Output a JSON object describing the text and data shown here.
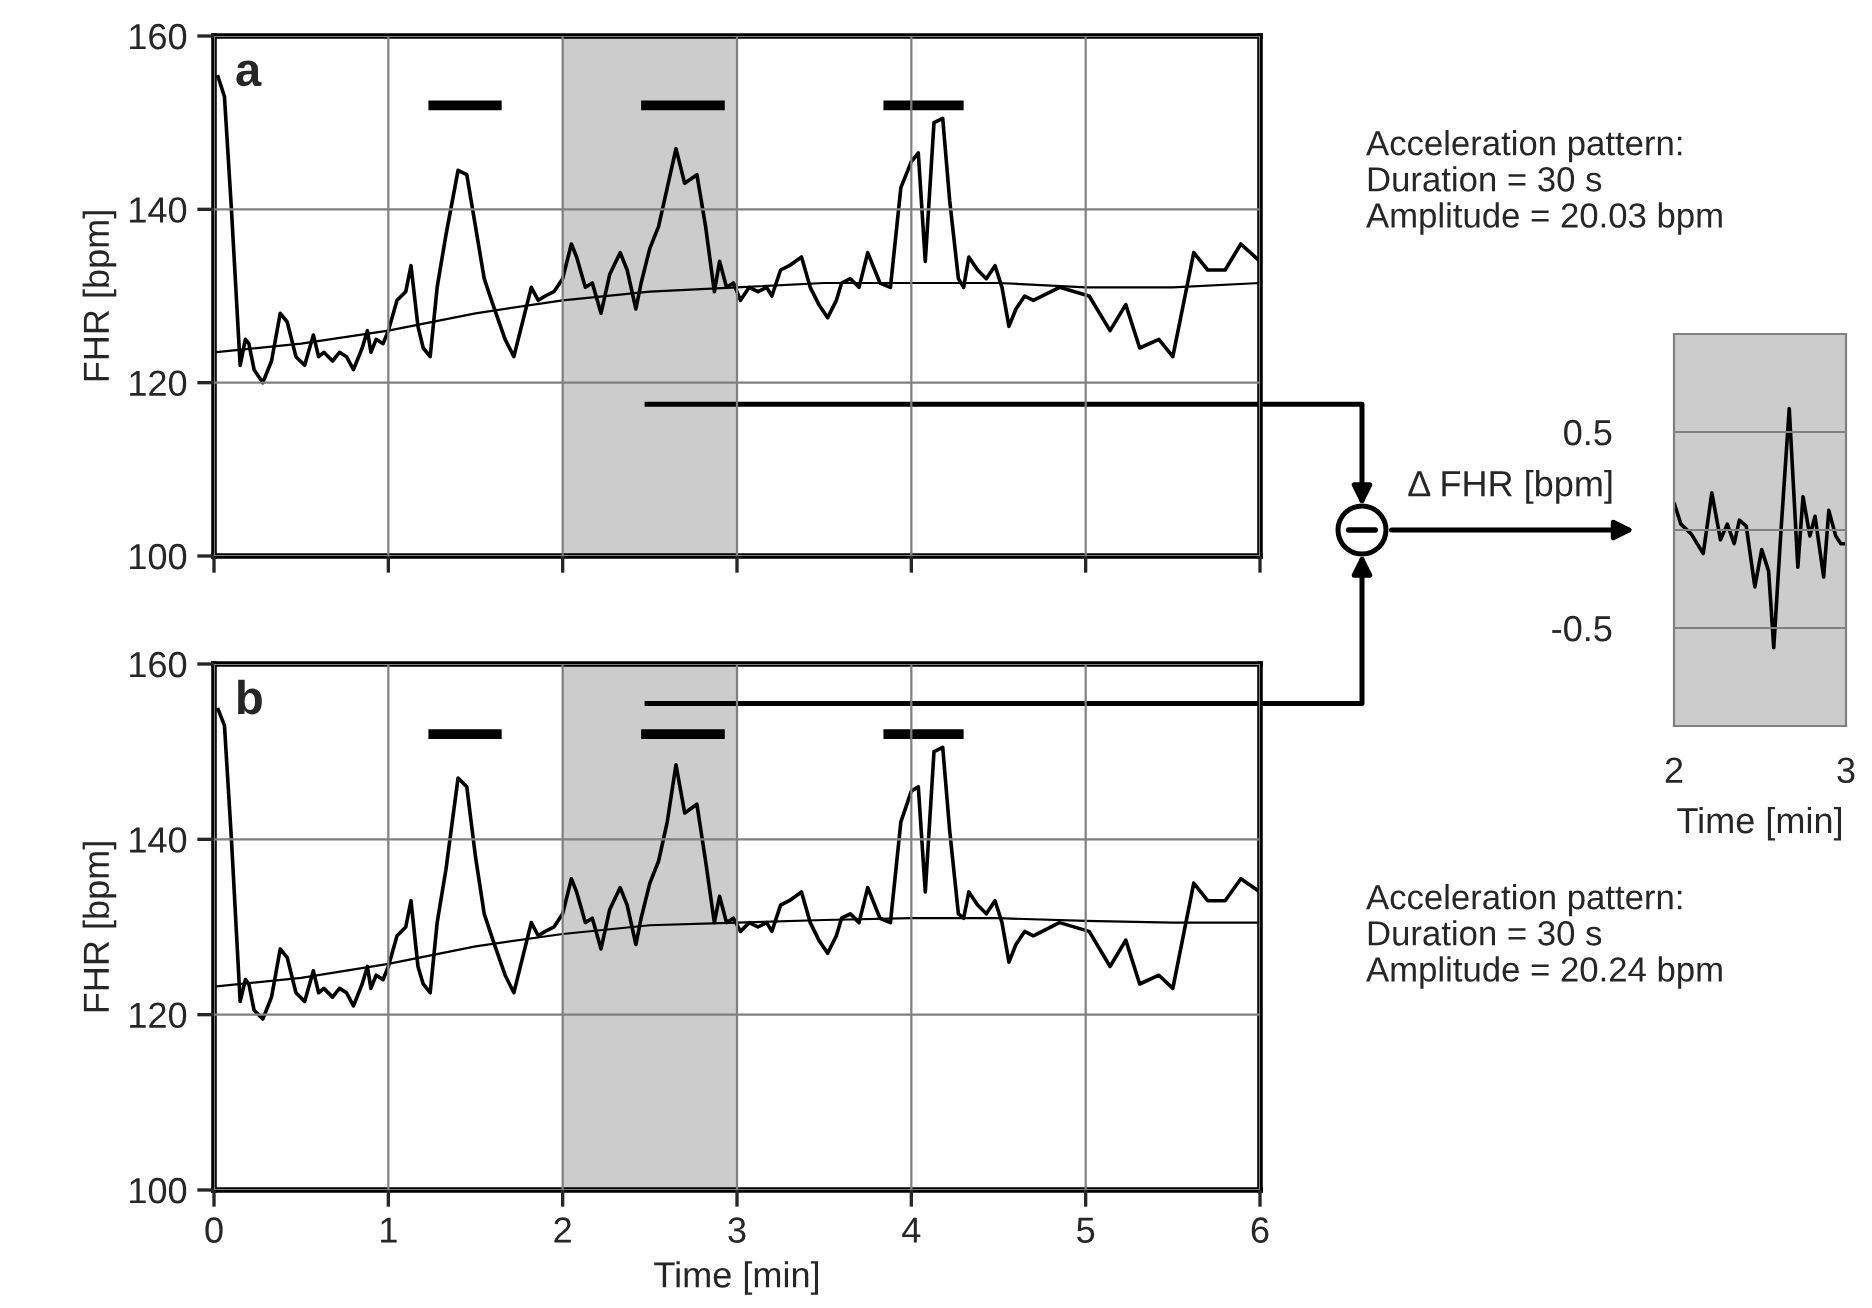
{
  "chart_data": [
    {
      "type": "line",
      "title": "a",
      "ylabel": "FHR [bpm]",
      "xlim": [
        0,
        6
      ],
      "xticks": [
        0,
        1,
        2,
        3,
        4,
        5,
        6
      ],
      "ylim": [
        100,
        160
      ],
      "yticks": [
        100,
        120,
        140,
        160
      ],
      "grid": true,
      "tick_labels": "y",
      "bands": [
        {
          "axis": "x",
          "from": 2,
          "to": 3,
          "color": "#cccccc"
        }
      ],
      "annotations": [
        "Acceleration pattern:\nDuration = 30 s\nAmplitude = 20.03 bpm"
      ],
      "series": [
        {
          "color": "#000000",
          "x": [
            0.02,
            0.06,
            0.1,
            0.15,
            0.18,
            0.2,
            0.23,
            0.28,
            0.33,
            0.38,
            0.42,
            0.47,
            0.52,
            0.57,
            0.6,
            0.63,
            0.68,
            0.72,
            0.76,
            0.8,
            0.85,
            0.88,
            0.9,
            0.93,
            0.97,
            1.0,
            1.05,
            1.1,
            1.13,
            1.17,
            1.2,
            1.24,
            1.28,
            1.33,
            1.4,
            1.45,
            1.5,
            1.55,
            1.6,
            1.67,
            1.72,
            1.77,
            1.82,
            1.86,
            1.9,
            1.95,
            2.0,
            2.05,
            2.08,
            2.13,
            2.17,
            2.22,
            2.27,
            2.33,
            2.37,
            2.42,
            2.45,
            2.5,
            2.55,
            2.6,
            2.65,
            2.7,
            2.77,
            2.82,
            2.87,
            2.9,
            2.94,
            2.98,
            3.02,
            3.07,
            3.12,
            3.17,
            3.2,
            3.25,
            3.3,
            3.37,
            3.42,
            3.47,
            3.52,
            3.57,
            3.6,
            3.65,
            3.7,
            3.75,
            3.82,
            3.88,
            3.94,
            4.0,
            4.04,
            4.08,
            4.13,
            4.18,
            4.22,
            4.27,
            4.3,
            4.33,
            4.38,
            4.43,
            4.48,
            4.52,
            4.56,
            4.6,
            4.65,
            4.7,
            4.85,
            5.02,
            5.14,
            5.23,
            5.31,
            5.42,
            5.5,
            5.62,
            5.7,
            5.8,
            5.89,
            6.0
          ],
          "values": [
            155.5,
            153,
            140,
            122,
            125,
            124.5,
            121.5,
            120,
            122.5,
            128,
            127,
            123,
            122,
            125.5,
            123,
            123.5,
            122.5,
            123.5,
            123,
            121.5,
            124,
            126,
            123.5,
            125,
            124.5,
            126,
            129.5,
            130.5,
            133.5,
            126.5,
            124,
            123,
            131,
            137,
            144.5,
            144,
            138,
            132,
            129,
            125,
            123,
            127,
            131,
            129.5,
            130,
            130.5,
            132,
            136,
            134.5,
            131,
            131.5,
            128,
            132.5,
            135,
            133,
            128.5,
            131.5,
            135.5,
            138,
            142.5,
            147,
            143,
            144,
            138,
            130.5,
            134,
            131,
            131.5,
            129.5,
            131,
            130.5,
            131,
            130,
            133,
            133.5,
            134.5,
            131,
            129,
            127.5,
            129.5,
            131.5,
            132,
            131,
            135,
            131.5,
            131,
            142.5,
            145.5,
            146.5,
            134,
            150,
            150.5,
            141,
            132,
            131,
            134.5,
            133,
            132,
            133.5,
            131,
            126.5,
            128.5,
            130,
            129.5,
            131,
            130,
            126,
            129,
            124,
            125,
            123,
            135,
            133,
            133,
            136,
            134
          ]
        },
        {
          "color": "#000000",
          "x": [
            0,
            0.5,
            1,
            1.5,
            2,
            2.5,
            3,
            3.5,
            4,
            4.5,
            5,
            5.5,
            6
          ],
          "values": [
            123.5,
            124.5,
            126,
            128,
            129.5,
            130.5,
            131,
            131.5,
            131.5,
            131.5,
            131,
            131,
            131.5
          ]
        },
        {
          "color": "#000000",
          "x": [
            1.23,
            1.65
          ],
          "values": [
            152,
            152
          ]
        },
        {
          "color": "#000000",
          "x": [
            2.45,
            2.93
          ],
          "values": [
            152,
            152
          ]
        },
        {
          "color": "#000000",
          "x": [
            3.84,
            4.3
          ],
          "values": [
            152,
            152
          ]
        },
        {
          "color": "#000000",
          "x": [
            2.47,
            6
          ],
          "values": [
            117.5,
            117.5
          ]
        }
      ]
    },
    {
      "type": "line",
      "title": "b",
      "ylabel": "FHR [bpm]",
      "xlabel": "Time [min]",
      "xlim": [
        0,
        6
      ],
      "xticks": [
        0,
        1,
        2,
        3,
        4,
        5,
        6
      ],
      "ylim": [
        100,
        160
      ],
      "yticks": [
        100,
        120,
        140,
        160
      ],
      "grid": true,
      "bands": [
        {
          "axis": "x",
          "from": 2,
          "to": 3,
          "color": "#cccccc"
        }
      ],
      "annotations": [
        "Acceleration pattern:\nDuration = 30 s\nAmplitude = 20.24 bpm"
      ],
      "series": [
        {
          "color": "#000000",
          "x": [
            0.02,
            0.06,
            0.1,
            0.15,
            0.18,
            0.2,
            0.23,
            0.28,
            0.33,
            0.38,
            0.42,
            0.47,
            0.52,
            0.57,
            0.6,
            0.63,
            0.68,
            0.72,
            0.76,
            0.8,
            0.85,
            0.88,
            0.9,
            0.93,
            0.97,
            1.0,
            1.05,
            1.1,
            1.13,
            1.17,
            1.2,
            1.24,
            1.28,
            1.33,
            1.4,
            1.45,
            1.5,
            1.55,
            1.6,
            1.67,
            1.72,
            1.77,
            1.82,
            1.86,
            1.9,
            1.95,
            2.0,
            2.05,
            2.08,
            2.13,
            2.17,
            2.22,
            2.27,
            2.33,
            2.37,
            2.42,
            2.45,
            2.5,
            2.55,
            2.6,
            2.65,
            2.7,
            2.77,
            2.82,
            2.87,
            2.9,
            2.94,
            2.98,
            3.02,
            3.07,
            3.12,
            3.17,
            3.2,
            3.25,
            3.3,
            3.37,
            3.42,
            3.47,
            3.52,
            3.57,
            3.6,
            3.65,
            3.7,
            3.75,
            3.82,
            3.88,
            3.94,
            4.0,
            4.04,
            4.08,
            4.13,
            4.18,
            4.22,
            4.27,
            4.3,
            4.33,
            4.38,
            4.43,
            4.48,
            4.52,
            4.56,
            4.6,
            4.65,
            4.7,
            4.85,
            5.02,
            5.14,
            5.23,
            5.31,
            5.42,
            5.5,
            5.62,
            5.7,
            5.8,
            5.89,
            6.0
          ],
          "values": [
            155,
            153,
            140,
            121.5,
            124,
            123.5,
            120.5,
            119.5,
            122,
            127.5,
            126.5,
            122.5,
            121.5,
            125,
            122.5,
            123,
            122,
            123,
            122.5,
            121,
            123.5,
            125.5,
            123,
            124.5,
            124,
            125.5,
            129,
            130,
            133,
            125.5,
            123.5,
            122.5,
            130.5,
            136.5,
            147,
            146,
            138,
            131.5,
            128.5,
            124.5,
            122.5,
            126.5,
            130.5,
            129,
            129.5,
            130,
            131.5,
            135.5,
            134,
            130.5,
            131,
            127.5,
            132,
            134.5,
            132.5,
            128,
            131,
            135,
            137.5,
            142,
            148.5,
            143,
            144,
            137.5,
            130.5,
            133.5,
            130.5,
            131,
            129.5,
            130.5,
            130,
            130.5,
            129.5,
            132.5,
            133,
            134,
            130.5,
            128.5,
            127,
            129,
            131,
            131.5,
            130.5,
            134.5,
            131,
            130.5,
            142,
            145.5,
            146,
            134,
            150,
            150.5,
            141,
            131.5,
            131,
            134,
            132.5,
            131.5,
            133,
            130.5,
            126,
            128,
            129.5,
            129,
            130.5,
            129.5,
            125.5,
            128.5,
            123.5,
            124.5,
            123,
            135,
            133,
            133,
            135.5,
            134
          ]
        },
        {
          "color": "#000000",
          "x": [
            0,
            0.5,
            1,
            1.5,
            2,
            2.5,
            3,
            3.5,
            4,
            4.5,
            5,
            5.5,
            6
          ],
          "values": [
            123.2,
            124.2,
            125.8,
            127.8,
            129.2,
            130.2,
            130.5,
            130.8,
            131,
            131,
            130.7,
            130.5,
            130.5
          ]
        },
        {
          "color": "#000000",
          "x": [
            1.23,
            1.65
          ],
          "values": [
            152,
            152
          ]
        },
        {
          "color": "#000000",
          "x": [
            2.45,
            2.93
          ],
          "values": [
            152,
            152
          ]
        },
        {
          "color": "#000000",
          "x": [
            3.84,
            4.3
          ],
          "values": [
            152,
            152
          ]
        },
        {
          "color": "#000000",
          "x": [
            2.47,
            6
          ],
          "values": [
            155.5,
            155.5
          ]
        }
      ]
    },
    {
      "type": "line",
      "ylabel": "Δ FHR [bpm]",
      "xlabel": "Time [min]",
      "xlim": [
        2,
        3
      ],
      "xticks": [
        2,
        3
      ],
      "ylim": [
        -1,
        1
      ],
      "yticks": [
        {
          "value": -0.5,
          "label": "-0.5"
        },
        {
          "value": 0,
          "label": null
        },
        0.5
      ],
      "grid": "y",
      "bands": [
        {
          "axis": "x",
          "from": 2,
          "to": 3,
          "color": "#cccccc"
        }
      ],
      "series": [
        {
          "color": "#000000",
          "x": [
            2.0,
            2.04,
            2.1,
            2.17,
            2.22,
            2.27,
            2.31,
            2.35,
            2.38,
            2.42,
            2.47,
            2.51,
            2.55,
            2.58,
            2.62,
            2.67,
            2.72,
            2.75,
            2.79,
            2.82,
            2.87,
            2.9,
            2.94,
            2.97,
            3.0
          ],
          "values": [
            0.14,
            0.03,
            -0.02,
            -0.12,
            0.19,
            -0.05,
            0.03,
            -0.07,
            0.05,
            0.02,
            -0.29,
            -0.1,
            -0.21,
            -0.6,
            -0.03,
            0.62,
            -0.19,
            0.17,
            -0.03,
            0.07,
            -0.24,
            0.1,
            -0.03,
            -0.07,
            -0.07
          ]
        }
      ]
    }
  ]
}
